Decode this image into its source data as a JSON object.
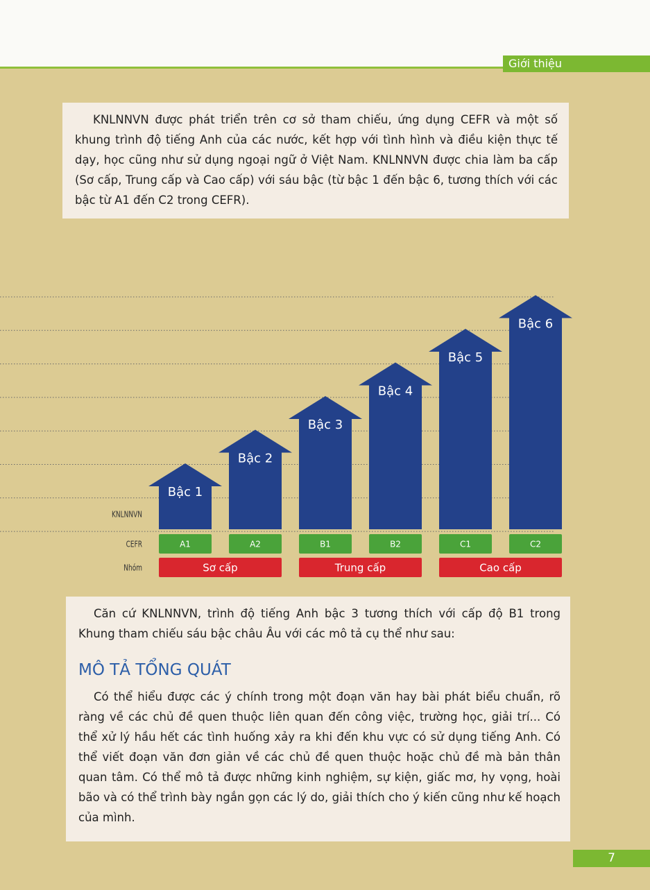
{
  "header": {
    "section": "Giới thiệu"
  },
  "intro": "KNLNNVN được phát triển trên cơ sở tham chiếu, ứng dụng CEFR và một số khung trình độ tiếng Anh của các nước, kết hợp với tình hình và điều kiện thực tế dạy, học cũng như sử dụng ngoại ngữ ở Việt Nam. KNLNNVN được chia làm ba cấp (Sơ cấp, Trung cấp và Cao cấp) với sáu bậc (từ bậc 1 đến bậc 6, tương thích với các bậc từ A1 đến C2 trong CEFR).",
  "diagram": {
    "row_labels": [
      "KNLNNVN",
      "CEFR",
      "Nhóm"
    ],
    "levels": [
      "Bậc 1",
      "Bậc 2",
      "Bậc 3",
      "Bậc 4",
      "Bậc 5",
      "Bậc 6"
    ],
    "cefr": [
      "A1",
      "A2",
      "B1",
      "B2",
      "C1",
      "C2"
    ],
    "groups": [
      "Sơ cấp",
      "Trung cấp",
      "Cao cấp"
    ]
  },
  "body": {
    "lead": "Căn cứ KNLNNVN, trình độ tiếng Anh bậc 3 tương thích với cấp độ B1 trong Khung tham chiếu sáu bậc châu Âu với các mô tả cụ thể như sau:",
    "heading": "MÔ TẢ TỔNG QUÁT",
    "paragraph": "Có thể hiểu được các ý chính trong một đoạn văn hay bài phát biểu chuẩn, rõ ràng về các chủ đề quen thuộc liên quan đến công việc, trường học, giải trí... Có thể xử lý hầu hết các tình huống xảy ra khi đến khu vực có sử dụng tiếng Anh. Có thể viết đoạn văn đơn giản về các chủ đề quen thuộc hoặc chủ đề mà bản thân quan tâm. Có thể mô tả được những kinh nghiệm, sự kiện, giấc mơ, hy vọng, hoài bão và có thể trình bày ngắn gọn các lý do, giải thích cho ý kiến cũng như kế hoạch của mình."
  },
  "footer": {
    "page": "7"
  }
}
